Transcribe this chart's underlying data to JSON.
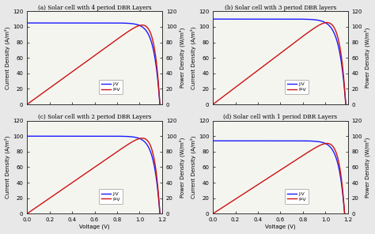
{
  "panels": [
    {
      "label": "(a)",
      "title": "Solar cell with 4 period DBR Layers",
      "Jsc": 105,
      "Voc": 1.18,
      "n": 2.0,
      "rs": 0.002
    },
    {
      "label": "(b)",
      "title": "Solar cell with 3 period DBR layers",
      "Jsc": 110,
      "Voc": 1.18,
      "n": 2.2,
      "rs": 0.002
    },
    {
      "label": "(c)",
      "title": "Solar cell with 2 period DBR Layers",
      "Jsc": 100,
      "Voc": 1.18,
      "n": 2.0,
      "rs": 0.002
    },
    {
      "label": "(d)",
      "title": "Solar cell with 1 period DBR Layers",
      "Jsc": 94,
      "Voc": 1.17,
      "n": 2.0,
      "rs": 0.002
    }
  ],
  "jv_color": "#1a1aff",
  "pv_color": "#cc1111",
  "line_width": 1.0,
  "xlabel": "Voltage (V)",
  "ylabel_left": "Current Density (A/m²)",
  "ylabel_right": "Power Density (W/m²)",
  "xlim": [
    0.0,
    1.2
  ],
  "ylim": [
    0,
    120
  ],
  "xticks": [
    0.0,
    0.2,
    0.4,
    0.6,
    0.8,
    1.0,
    1.2
  ],
  "yticks": [
    0,
    20,
    40,
    60,
    80,
    100,
    120
  ],
  "legend_jv": "J-V",
  "legend_pv": "P-V",
  "bg_color": "#f5f5f0",
  "fig_bg": "#e8e8e8"
}
